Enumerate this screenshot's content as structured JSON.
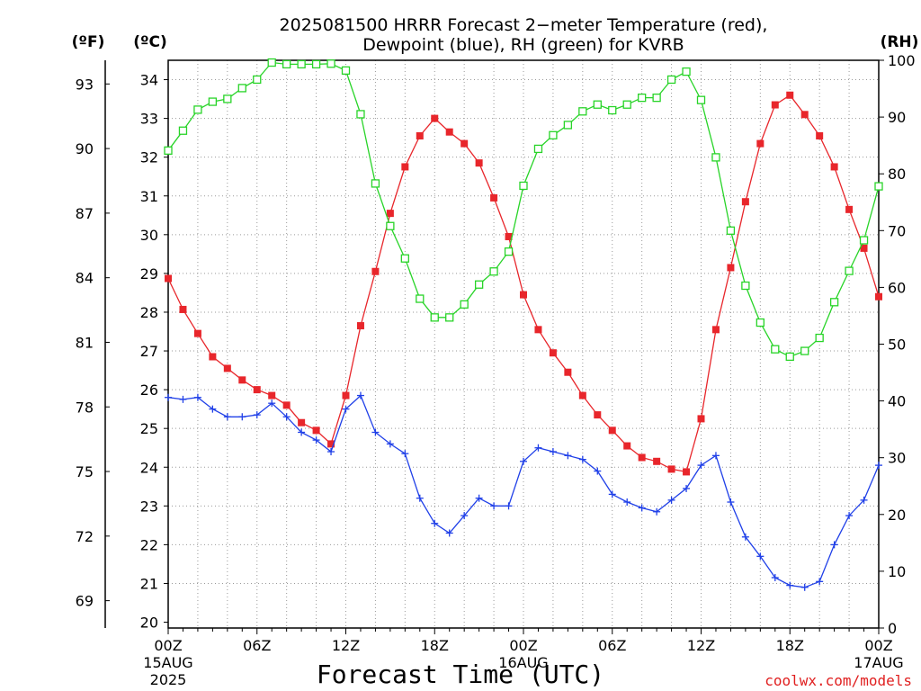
{
  "chart_data": {
    "type": "line",
    "title_line1": "2025081500 HRRR Forecast 2−meter Temperature (red),",
    "title_line2": "Dewpoint (blue), RH (green) for KVRB",
    "xlabel": "Forecast Time (UTC)",
    "credit": "coolwx.com/models",
    "units": {
      "fahrenheit": "(ºF)",
      "celsius": "(ºC)",
      "rh": "(RH)"
    },
    "celsius_ticks": [
      "20",
      "21",
      "22",
      "23",
      "24",
      "25",
      "26",
      "27",
      "28",
      "29",
      "30",
      "31",
      "32",
      "33",
      "34"
    ],
    "fahrenheit_ticks": [
      "69",
      "72",
      "75",
      "78",
      "81",
      "84",
      "87",
      "90",
      "93"
    ],
    "rh_ticks": [
      "0",
      "10",
      "20",
      "30",
      "40",
      "50",
      "60",
      "70",
      "80",
      "90",
      "100"
    ],
    "x_ticks": [
      {
        "h": 0,
        "line1": "00Z",
        "line2": "15AUG",
        "line3": "2025"
      },
      {
        "h": 6,
        "line1": "06Z",
        "line2": "",
        "line3": ""
      },
      {
        "h": 12,
        "line1": "12Z",
        "line2": "",
        "line3": ""
      },
      {
        "h": 18,
        "line1": "18Z",
        "line2": "",
        "line3": ""
      },
      {
        "h": 24,
        "line1": "00Z",
        "line2": "16AUG",
        "line3": ""
      },
      {
        "h": 30,
        "line1": "06Z",
        "line2": "",
        "line3": ""
      },
      {
        "h": 36,
        "line1": "12Z",
        "line2": "",
        "line3": ""
      },
      {
        "h": 42,
        "line1": "18Z",
        "line2": "",
        "line3": ""
      },
      {
        "h": 48,
        "line1": "00Z",
        "line2": "17AUG",
        "line3": ""
      }
    ],
    "xlim": [
      0,
      48
    ],
    "ylim_celsius": [
      19.85,
      34.5
    ],
    "ylim_rh": [
      0,
      100
    ],
    "grid": true,
    "colors": {
      "temperature": "#e8262b",
      "dewpoint": "#2040e8",
      "rh": "#28d428"
    },
    "series": [
      {
        "name": "Temperature (red)",
        "axis": "celsius",
        "marker": "filled-square",
        "values": [
          28.87,
          28.07,
          27.45,
          26.85,
          26.55,
          26.25,
          26.0,
          25.85,
          25.6,
          25.15,
          24.95,
          24.6,
          25.85,
          27.65,
          29.05,
          30.55,
          31.75,
          32.55,
          33.0,
          32.65,
          32.35,
          31.85,
          30.95,
          29.95,
          28.45,
          27.55,
          26.95,
          26.45,
          25.85,
          25.35,
          24.95,
          24.55,
          24.25,
          24.15,
          23.95,
          23.88,
          25.25,
          27.55,
          29.15,
          30.85,
          32.35,
          33.35,
          33.6,
          33.1,
          32.55,
          31.75,
          30.65,
          29.65,
          28.4
        ]
      },
      {
        "name": "Dewpoint (blue)",
        "axis": "celsius",
        "marker": "plus",
        "values": [
          25.8,
          25.75,
          25.8,
          25.5,
          25.3,
          25.3,
          25.35,
          25.65,
          25.3,
          24.9,
          24.7,
          24.4,
          25.5,
          25.85,
          24.9,
          24.6,
          24.35,
          23.2,
          22.55,
          22.3,
          22.75,
          23.2,
          23.0,
          23.0,
          24.15,
          24.5,
          24.4,
          24.3,
          24.2,
          23.9,
          23.3,
          23.1,
          22.95,
          22.85,
          23.15,
          23.45,
          24.05,
          24.3,
          23.1,
          22.2,
          21.7,
          21.15,
          20.95,
          20.9,
          21.05,
          22.0,
          22.75,
          23.15,
          24.05
        ]
      },
      {
        "name": "RH (green)",
        "axis": "rh",
        "marker": "open-square",
        "values": [
          84.1,
          87.6,
          91.3,
          92.7,
          93.2,
          95.1,
          96.6,
          99.6,
          99.3,
          99.3,
          99.3,
          99.4,
          98.2,
          90.5,
          78.3,
          70.8,
          65.1,
          58.0,
          54.7,
          54.7,
          57.0,
          60.5,
          62.8,
          66.3,
          77.9,
          84.4,
          86.8,
          88.6,
          91.0,
          92.2,
          91.2,
          92.2,
          93.4,
          93.4,
          96.6,
          98.0,
          93.0,
          82.9,
          70.0,
          60.3,
          53.8,
          49.1,
          47.8,
          48.8,
          51.1,
          57.4,
          62.9,
          68.3,
          77.8
        ]
      }
    ]
  }
}
